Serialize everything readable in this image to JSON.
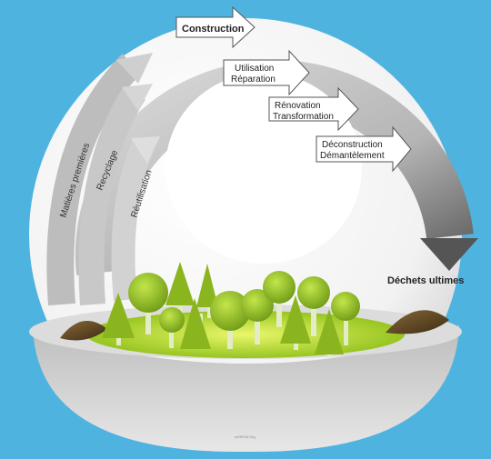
{
  "diagram": {
    "stages": [
      {
        "label": "Construction"
      },
      {
        "label1": "Utilisation",
        "label2": "Réparation"
      },
      {
        "label1": "Rénovation",
        "label2": "Transformation"
      },
      {
        "label1": "Déconstruction",
        "label2": "Démantèlement"
      }
    ],
    "final_label": "Déchets ultimes",
    "loops": [
      {
        "label": "Matières premières"
      },
      {
        "label": "Recyclage"
      },
      {
        "label": "Réutilisation"
      }
    ],
    "footer_text": "ecRESA Org"
  },
  "colors": {
    "background": "#4fb3e0",
    "sphere": "#ffffff",
    "ring": "#c9c9c9",
    "ground": "#9ccb1a",
    "tree": "#7ea91b"
  }
}
